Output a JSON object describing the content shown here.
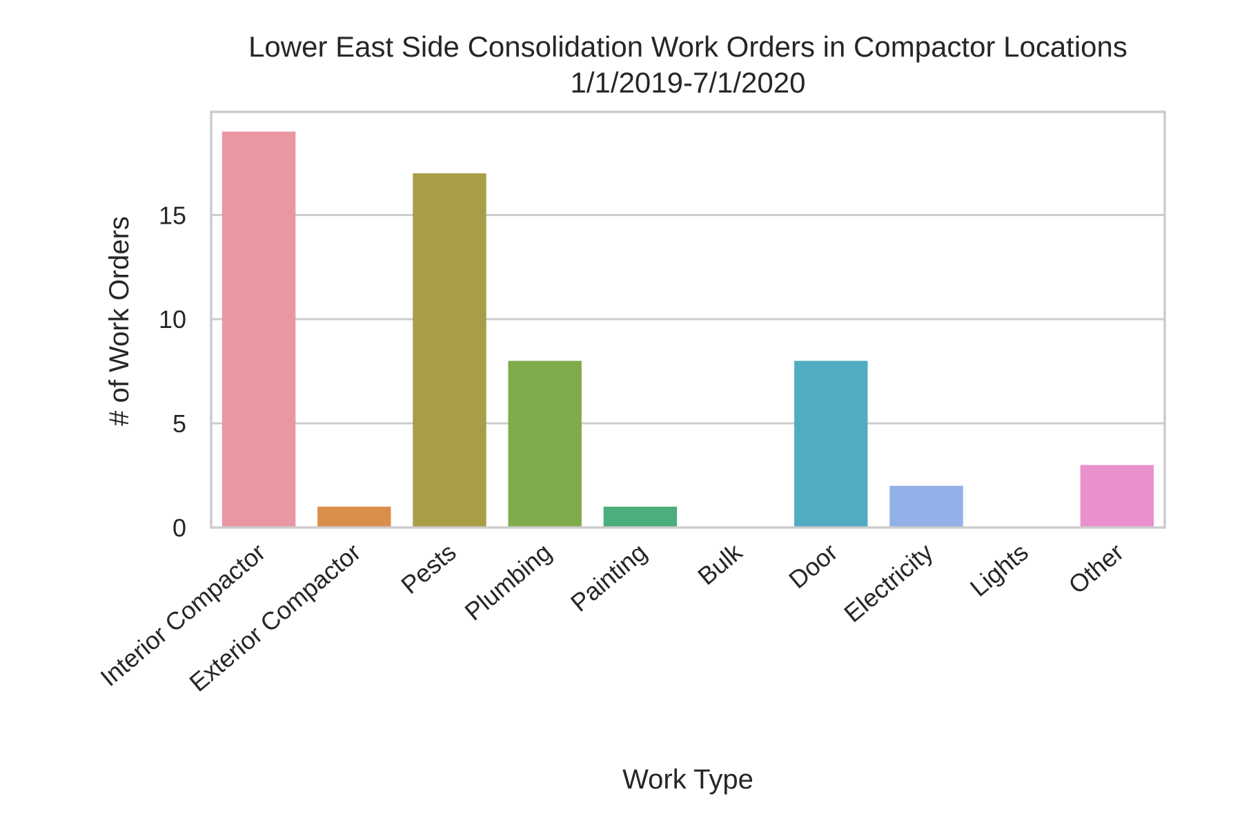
{
  "chart_data": {
    "type": "bar",
    "title": "Lower East Side Consolidation Work Orders in Compactor Locations",
    "subtitle": "1/1/2019-7/1/2020",
    "xlabel": "Work Type",
    "ylabel": "# of Work Orders",
    "categories": [
      "Interior Compactor",
      "Exterior Compactor",
      "Pests",
      "Plumbing",
      "Painting",
      "Bulk",
      "Door",
      "Electricity",
      "Lights",
      "Other"
    ],
    "values": [
      19,
      1,
      17,
      8,
      1,
      0,
      8,
      2,
      0,
      3
    ],
    "colors": [
      "#ea96a3",
      "#d98f4a",
      "#aa9d47",
      "#80ab4a",
      "#4bae7c",
      "#4fae9a",
      "#51acc2",
      "#93b0e8",
      "#d49ae9",
      "#e990cd"
    ],
    "yticks": [
      0,
      5,
      10,
      15
    ],
    "ylim": [
      0,
      19.95
    ],
    "grid": true,
    "legend": "none"
  }
}
